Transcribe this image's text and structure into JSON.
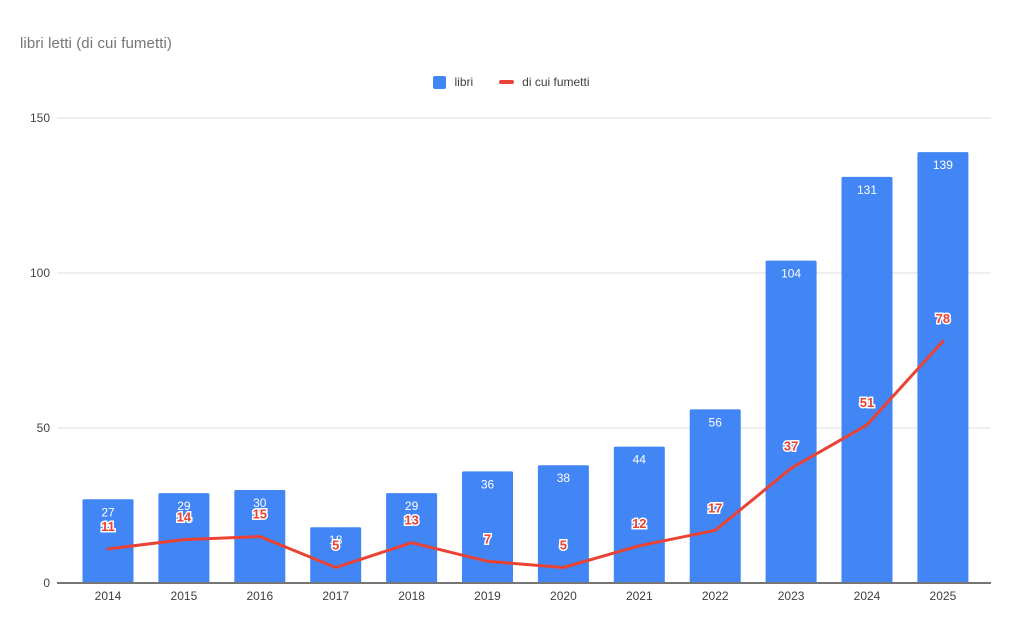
{
  "chart_data": {
    "type": "bar+line",
    "title": "libri letti (di cui fumetti)",
    "categories": [
      "2014",
      "2015",
      "2016",
      "2017",
      "2018",
      "2019",
      "2020",
      "2021",
      "2022",
      "2023",
      "2024",
      "2025"
    ],
    "series": [
      {
        "name": "libri",
        "type": "bar",
        "color": "#4285F4",
        "label_color": "#ffffff",
        "values": [
          27,
          29,
          30,
          18,
          29,
          36,
          38,
          44,
          56,
          104,
          131,
          139
        ]
      },
      {
        "name": "di cui fumetti",
        "type": "line",
        "color": "#EA4335",
        "label_color": "#EA4335",
        "values": [
          11,
          14,
          15,
          5,
          13,
          7,
          5,
          12,
          17,
          37,
          51,
          78
        ]
      }
    ],
    "xlabel": "",
    "ylabel": "",
    "ylim": [
      0,
      150
    ],
    "yticks": [
      0,
      50,
      100,
      150
    ],
    "grid": true,
    "legend_position": "top-center",
    "style": {
      "background": "#ffffff",
      "title_color": "#757575",
      "axis_label_color": "#444444",
      "category_label_color": "#3c4043",
      "gridline_color": "#DEDEDE",
      "baseline_color": "#757575",
      "legend_text_color": "#3c4043"
    }
  }
}
